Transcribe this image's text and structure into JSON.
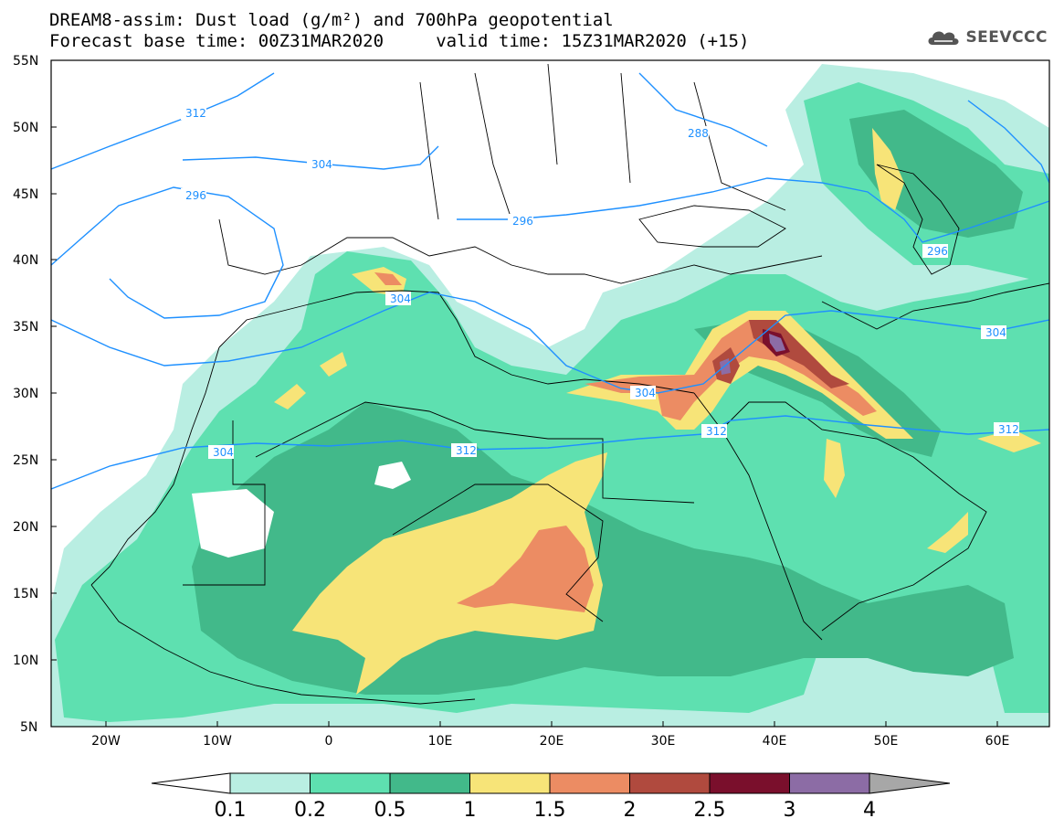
{
  "header": {
    "title_line1": "DREAM8-assim: Dust load (g/m²) and 700hPa geopotential",
    "title_line2": "Forecast base time: 00Z31MAR2020     valid time: 15Z31MAR2020 (+15)",
    "logo_text": "SEEVCCC",
    "logo_icon": "cloud-icon"
  },
  "axes": {
    "lat_ticks": [
      "55N",
      "50N",
      "45N",
      "40N",
      "35N",
      "30N",
      "25N",
      "20N",
      "15N",
      "10N",
      "5N"
    ],
    "lon_ticks": [
      "20W",
      "10W",
      "0",
      "10E",
      "20E",
      "30E",
      "40E",
      "50E",
      "60E"
    ]
  },
  "contour_labels": [
    "312",
    "304",
    "296",
    "288",
    "296",
    "304",
    "296",
    "304",
    "304",
    "312",
    "312",
    "304",
    "312"
  ],
  "legend": {
    "colors": [
      "#b9eee2",
      "#5ee0b0",
      "#42b98a",
      "#f7e478",
      "#ec8c63",
      "#b04a3e",
      "#7a0f2c",
      "#8c6ca5"
    ],
    "labels": [
      "0.1",
      "0.2",
      "0.5",
      "1",
      "1.5",
      "2",
      "2.5",
      "3",
      "4"
    ],
    "under_color": "#ffffff",
    "over_color": "#a7a7a7"
  },
  "colors": {
    "geopotential_line": "#1e90ff",
    "border_line": "#000000"
  }
}
